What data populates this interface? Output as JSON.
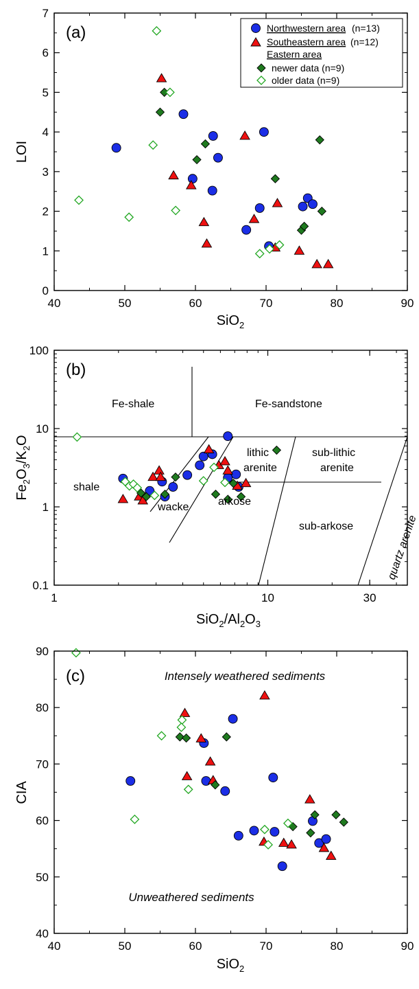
{
  "colors": {
    "northwestern": "#1b2ee6",
    "southeastern": "#ee1111",
    "eastern_newer": "#1f7a1f",
    "eastern_older": "#22a722",
    "outline": "#000000"
  },
  "legend": {
    "northwestern": "Northwestern area",
    "northwestern_n": " (n=13)",
    "southeastern": "Southeastern area",
    "southeastern_n": " (n=12)",
    "eastern": "Eastern area",
    "newer": "newer data (n=9)",
    "older": "older data (n=9)"
  },
  "chart_data": [
    {
      "type": "scatter",
      "panel_label": "(a)",
      "xlabel": "SiO₂",
      "ylabel": "LOI",
      "xlim": [
        40,
        90
      ],
      "ylim": [
        0,
        7
      ],
      "xticks": [
        40,
        50,
        60,
        70,
        80,
        90
      ],
      "yticks": [
        0,
        1,
        2,
        3,
        4,
        5,
        6,
        7
      ],
      "series": [
        {
          "name": "Northwestern area (n=13)",
          "marker": "circle",
          "points": [
            [
              48.8,
              3.6
            ],
            [
              58.3,
              4.45
            ],
            [
              59.6,
              2.82
            ],
            [
              62.5,
              3.9
            ],
            [
              63.2,
              3.35
            ],
            [
              62.4,
              2.52
            ],
            [
              69.7,
              4.0
            ],
            [
              69.1,
              2.08
            ],
            [
              67.2,
              1.53
            ],
            [
              70.4,
              1.12
            ],
            [
              75.9,
              2.33
            ],
            [
              75.2,
              2.12
            ],
            [
              76.6,
              2.18
            ]
          ]
        },
        {
          "name": "Southeastern area (n=12)",
          "marker": "triangle",
          "points": [
            [
              55.2,
              5.35
            ],
            [
              56.9,
              2.9
            ],
            [
              59.4,
              2.65
            ],
            [
              61.2,
              1.72
            ],
            [
              61.6,
              1.18
            ],
            [
              67.0,
              3.9
            ],
            [
              68.3,
              1.8
            ],
            [
              71.3,
              1.08
            ],
            [
              71.6,
              2.2
            ],
            [
              74.7,
              1.0
            ],
            [
              77.2,
              0.66
            ],
            [
              78.8,
              0.66
            ]
          ]
        },
        {
          "name": "newer data (n=9)",
          "marker": "diamond-filled",
          "points": [
            [
              55.6,
              5.0
            ],
            [
              55.0,
              4.5
            ],
            [
              61.4,
              3.7
            ],
            [
              60.2,
              3.3
            ],
            [
              71.3,
              2.82
            ],
            [
              77.6,
              3.8
            ],
            [
              75.0,
              1.52
            ],
            [
              75.4,
              1.62
            ],
            [
              77.9,
              2.0
            ]
          ]
        },
        {
          "name": "older data (n=9)",
          "marker": "diamond-open",
          "points": [
            [
              54.5,
              6.55
            ],
            [
              56.4,
              5.0
            ],
            [
              54.0,
              3.67
            ],
            [
              43.5,
              2.28
            ],
            [
              50.6,
              1.85
            ],
            [
              57.2,
              2.02
            ],
            [
              69.1,
              0.93
            ],
            [
              70.5,
              1.05
            ],
            [
              71.9,
              1.15
            ]
          ]
        }
      ]
    },
    {
      "type": "scatter",
      "panel_label": "(b)",
      "xlabel": "SiO₂/Al₂O₃",
      "ylabel": "Fe₂O₃/K₂O",
      "xscale": "log",
      "yscale": "log",
      "xlim": [
        1,
        45
      ],
      "ylim": [
        0.1,
        100
      ],
      "xticks": [
        1,
        10,
        30
      ],
      "yticks": [
        0.1,
        1,
        10,
        100
      ],
      "regions": [
        "Fe-shale",
        "Fe-sandstone",
        "shale",
        "wacke",
        "arkose",
        "lithic arenite",
        "sub-lithic arenite",
        "sub-arkose",
        "quartz arenite"
      ],
      "series": [
        {
          "name": "Northwestern area",
          "marker": "circle",
          "points": [
            [
              2.1,
              2.3
            ],
            [
              2.8,
              1.6
            ],
            [
              3.2,
              2.1
            ],
            [
              3.3,
              1.35
            ],
            [
              3.6,
              1.8
            ],
            [
              4.2,
              2.55
            ],
            [
              4.8,
              3.4
            ],
            [
              5.0,
              4.4
            ],
            [
              5.5,
              4.7
            ],
            [
              6.5,
              8.0
            ],
            [
              6.5,
              2.35
            ],
            [
              7.1,
              2.6
            ],
            [
              7.3,
              1.8
            ]
          ]
        },
        {
          "name": "Southeastern area",
          "marker": "triangle",
          "points": [
            [
              2.1,
              1.25
            ],
            [
              2.5,
              1.35
            ],
            [
              2.6,
              1.2
            ],
            [
              2.9,
              2.4
            ],
            [
              3.1,
              2.9
            ],
            [
              3.15,
              2.4
            ],
            [
              5.3,
              5.4
            ],
            [
              5.9,
              3.4
            ],
            [
              6.3,
              3.8
            ],
            [
              6.5,
              2.9
            ],
            [
              7.2,
              1.85
            ],
            [
              7.9,
              2.0
            ]
          ]
        },
        {
          "name": "Eastern area, newer data",
          "marker": "diamond-filled",
          "points": [
            [
              2.55,
              1.5
            ],
            [
              2.7,
              1.35
            ],
            [
              3.3,
              1.45
            ],
            [
              3.7,
              2.4
            ],
            [
              5.7,
              1.45
            ],
            [
              6.5,
              1.25
            ],
            [
              7.5,
              1.35
            ],
            [
              6.9,
              2.0
            ],
            [
              11.0,
              5.3
            ]
          ]
        },
        {
          "name": "Eastern area, older data",
          "marker": "diamond-open",
          "points": [
            [
              1.28,
              7.8
            ],
            [
              2.15,
              2.1
            ],
            [
              2.25,
              1.85
            ],
            [
              2.35,
              1.95
            ],
            [
              2.45,
              1.75
            ],
            [
              2.95,
              1.4
            ],
            [
              5.0,
              2.15
            ],
            [
              5.6,
              3.2
            ],
            [
              6.3,
              2.05
            ]
          ]
        }
      ]
    },
    {
      "type": "scatter",
      "panel_label": "(c)",
      "xlabel": "SiO₂",
      "ylabel": "CIA",
      "xlim": [
        40,
        90
      ],
      "ylim": [
        40,
        90
      ],
      "xticks": [
        40,
        50,
        60,
        70,
        80,
        90
      ],
      "yticks": [
        40,
        50,
        60,
        70,
        80,
        90
      ],
      "annotations": [
        "Intensely weathered sediments",
        "Unweathered sediments"
      ],
      "series": [
        {
          "name": "Northwestern area",
          "marker": "circle",
          "points": [
            [
              50.8,
              67.0
            ],
            [
              61.2,
              73.7
            ],
            [
              61.5,
              67.0
            ],
            [
              64.2,
              65.2
            ],
            [
              65.3,
              78.0
            ],
            [
              66.1,
              57.3
            ],
            [
              68.3,
              58.2
            ],
            [
              71.0,
              67.6
            ],
            [
              71.2,
              58.0
            ],
            [
              72.3,
              51.9
            ],
            [
              76.6,
              59.9
            ],
            [
              77.5,
              56.0
            ],
            [
              78.5,
              56.7
            ]
          ]
        },
        {
          "name": "Southeastern area",
          "marker": "triangle",
          "points": [
            [
              58.5,
              79.0
            ],
            [
              58.8,
              67.8
            ],
            [
              60.8,
              74.5
            ],
            [
              62.1,
              70.4
            ],
            [
              62.5,
              67.1
            ],
            [
              69.8,
              82.1
            ],
            [
              69.7,
              56.2
            ],
            [
              72.5,
              56.0
            ],
            [
              73.6,
              55.7
            ],
            [
              76.2,
              63.7
            ],
            [
              78.2,
              55.1
            ],
            [
              79.2,
              53.7
            ]
          ]
        },
        {
          "name": "Eastern area, newer data",
          "marker": "diamond-filled",
          "points": [
            [
              57.8,
              74.8
            ],
            [
              58.7,
              74.6
            ],
            [
              62.8,
              66.3
            ],
            [
              64.4,
              74.8
            ],
            [
              73.8,
              58.9
            ],
            [
              76.9,
              61.0
            ],
            [
              76.3,
              57.8
            ],
            [
              79.9,
              61.0
            ],
            [
              81.0,
              59.7
            ]
          ]
        },
        {
          "name": "Eastern area, older data",
          "marker": "diamond-open",
          "points": [
            [
              43.1,
              89.7
            ],
            [
              51.4,
              60.2
            ],
            [
              55.2,
              75.0
            ],
            [
              58.1,
              77.8
            ],
            [
              58.0,
              76.5
            ],
            [
              59.0,
              65.5
            ],
            [
              69.8,
              58.4
            ],
            [
              70.3,
              55.7
            ],
            [
              73.1,
              59.5
            ]
          ]
        }
      ]
    }
  ]
}
